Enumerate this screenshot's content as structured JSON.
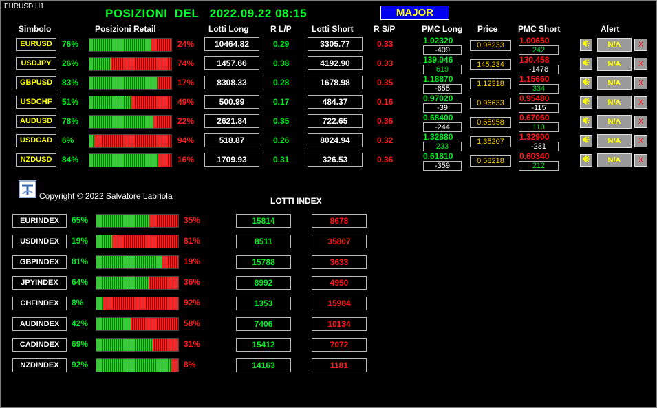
{
  "chart_label": "EURUSD,H1",
  "title": "POSIZIONI  DEL   2022.09.22 08:15",
  "group_button": "MAJOR",
  "headers": {
    "simbolo": "Simbolo",
    "posizioni_retail": "Posizioni Retail",
    "lotti_long": "Lotti Long",
    "r_lp": "R L/P",
    "lotti_short": "Lotti Short",
    "r_sp": "R S/P",
    "pmc_long": "PMC Long",
    "price": "Price",
    "pmc_short": "PMC Short",
    "alert": "Alert"
  },
  "colors": {
    "long": "#00ee22",
    "short": "#ff1a1a",
    "symbol": "#ffff00",
    "price": "#ffd200",
    "button_bg": "#9a9a9a"
  },
  "pairs": [
    {
      "symbol": "EURUSD",
      "long_pct": "76%",
      "long_frac": 0.76,
      "short_pct": "24%",
      "lotti_long": "10464.82",
      "r_lp": "0.29",
      "lotti_short": "3305.77",
      "r_sp": "0.33",
      "pmc_long": "1.02320",
      "pmc_long_diff": "-409",
      "pmc_long_diff_color": "#ffffff",
      "price": "0.98233",
      "pmc_short": "1.00650",
      "pmc_short_diff": "242",
      "pmc_short_diff_color": "#00ee22",
      "alert_value": "N/A",
      "alert_icon": "bell-icon",
      "remove_icon": "close-icon",
      "remove_glyph": "X"
    },
    {
      "symbol": "USDJPY",
      "long_pct": "26%",
      "long_frac": 0.26,
      "short_pct": "74%",
      "lotti_long": "1457.66",
      "r_lp": "0.38",
      "lotti_short": "4192.90",
      "r_sp": "0.33",
      "pmc_long": "139.046",
      "pmc_long_diff": "619",
      "pmc_long_diff_color": "#00ee22",
      "price": "145.234",
      "pmc_short": "130.458",
      "pmc_short_diff": "-1478",
      "pmc_short_diff_color": "#ffffff",
      "alert_value": "N/A",
      "alert_icon": "bell-icon",
      "remove_icon": "close-icon",
      "remove_glyph": "X"
    },
    {
      "symbol": "GBPUSD",
      "long_pct": "83%",
      "long_frac": 0.83,
      "short_pct": "17%",
      "lotti_long": "8308.33",
      "r_lp": "0.28",
      "lotti_short": "1678.98",
      "r_sp": "0.35",
      "pmc_long": "1.18870",
      "pmc_long_diff": "-655",
      "pmc_long_diff_color": "#ffffff",
      "price": "1.12318",
      "pmc_short": "1.15660",
      "pmc_short_diff": "334",
      "pmc_short_diff_color": "#00ee22",
      "alert_value": "N/A",
      "alert_icon": "bell-icon",
      "remove_icon": "close-icon",
      "remove_glyph": "X"
    },
    {
      "symbol": "USDCHF",
      "long_pct": "51%",
      "long_frac": 0.51,
      "short_pct": "49%",
      "lotti_long": "500.99",
      "r_lp": "0.17",
      "lotti_short": "484.37",
      "r_sp": "0.16",
      "pmc_long": "0.97020",
      "pmc_long_diff": "-39",
      "pmc_long_diff_color": "#ffffff",
      "price": "0.96633",
      "pmc_short": "0.95480",
      "pmc_short_diff": "-115",
      "pmc_short_diff_color": "#ffffff",
      "alert_value": "N/A",
      "alert_icon": "bell-icon",
      "remove_icon": "close-icon",
      "remove_glyph": "X"
    },
    {
      "symbol": "AUDUSD",
      "long_pct": "78%",
      "long_frac": 0.78,
      "short_pct": "22%",
      "lotti_long": "2621.84",
      "r_lp": "0.35",
      "lotti_short": "722.65",
      "r_sp": "0.36",
      "pmc_long": "0.68400",
      "pmc_long_diff": "-244",
      "pmc_long_diff_color": "#ffffff",
      "price": "0.65958",
      "pmc_short": "0.67060",
      "pmc_short_diff": "110",
      "pmc_short_diff_color": "#00ee22",
      "alert_value": "N/A",
      "alert_icon": "bell-icon",
      "remove_icon": "close-icon",
      "remove_glyph": "X"
    },
    {
      "symbol": "USDCAD",
      "long_pct": "6%",
      "long_frac": 0.06,
      "short_pct": "94%",
      "lotti_long": "518.87",
      "r_lp": "0.26",
      "lotti_short": "8024.94",
      "r_sp": "0.32",
      "pmc_long": "1.32880",
      "pmc_long_diff": "233",
      "pmc_long_diff_color": "#00ee22",
      "price": "1.35207",
      "pmc_short": "1.32900",
      "pmc_short_diff": "-231",
      "pmc_short_diff_color": "#ffffff",
      "alert_value": "N/A",
      "alert_icon": "bell-icon",
      "remove_icon": "close-icon",
      "remove_glyph": "X"
    },
    {
      "symbol": "NZDUSD",
      "long_pct": "84%",
      "long_frac": 0.84,
      "short_pct": "16%",
      "lotti_long": "1709.93",
      "r_lp": "0.31",
      "lotti_short": "326.53",
      "r_sp": "0.36",
      "pmc_long": "0.61810",
      "pmc_long_diff": "-359",
      "pmc_long_diff_color": "#ffffff",
      "price": "0.58218",
      "pmc_short": "0.60340",
      "pmc_short_diff": "212",
      "pmc_short_diff_color": "#00ee22",
      "alert_value": "N/A",
      "alert_icon": "bell-icon",
      "remove_icon": "close-icon",
      "remove_glyph": "X"
    }
  ],
  "logo_icon": "author-logo-icon",
  "copyright": "Copyright © 2022 Salvatore Labriola",
  "lotti_index_title": "LOTTI INDEX",
  "indexes": [
    {
      "symbol": "EURINDEX",
      "long_pct": "65%",
      "long_frac": 0.65,
      "short_pct": "35%",
      "lotti_long": "15814",
      "lotti_short": "8678"
    },
    {
      "symbol": "USDINDEX",
      "long_pct": "19%",
      "long_frac": 0.19,
      "short_pct": "81%",
      "lotti_long": "8511",
      "lotti_short": "35807"
    },
    {
      "symbol": "GBPINDEX",
      "long_pct": "81%",
      "long_frac": 0.81,
      "short_pct": "19%",
      "lotti_long": "15788",
      "lotti_short": "3633"
    },
    {
      "symbol": "JPYINDEX",
      "long_pct": "64%",
      "long_frac": 0.64,
      "short_pct": "36%",
      "lotti_long": "8992",
      "lotti_short": "4950"
    },
    {
      "symbol": "CHFINDEX",
      "long_pct": "8%",
      "long_frac": 0.08,
      "short_pct": "92%",
      "lotti_long": "1353",
      "lotti_short": "15984"
    },
    {
      "symbol": "AUDINDEX",
      "long_pct": "42%",
      "long_frac": 0.42,
      "short_pct": "58%",
      "lotti_long": "7406",
      "lotti_short": "10134"
    },
    {
      "symbol": "CADINDEX",
      "long_pct": "69%",
      "long_frac": 0.69,
      "short_pct": "31%",
      "lotti_long": "15412",
      "lotti_short": "7072"
    },
    {
      "symbol": "NZDINDEX",
      "long_pct": "92%",
      "long_frac": 0.92,
      "short_pct": "8%",
      "lotti_long": "14163",
      "lotti_short": "1181"
    }
  ]
}
